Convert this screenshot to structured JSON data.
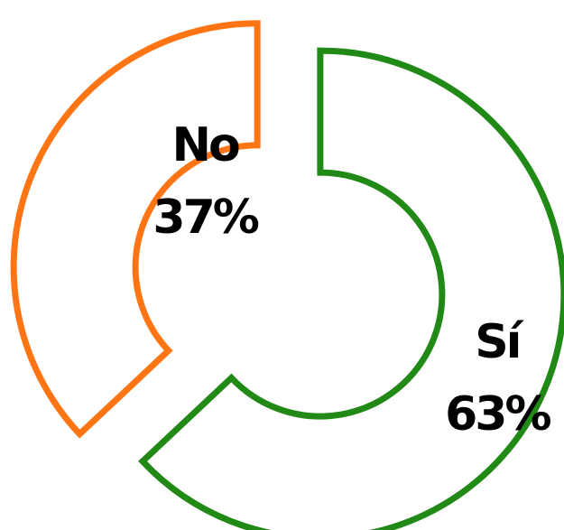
{
  "chart_data": {
    "type": "pie",
    "variant": "exploded-donut",
    "title": "",
    "legend": "none",
    "slices": [
      {
        "label": "No",
        "value": 37,
        "value_label": "37%",
        "color": "#FF7514"
      },
      {
        "label": "Sí",
        "value": 63,
        "value_label": "63%",
        "color": "#218A17"
      }
    ],
    "fill": "#FFFFFF"
  }
}
